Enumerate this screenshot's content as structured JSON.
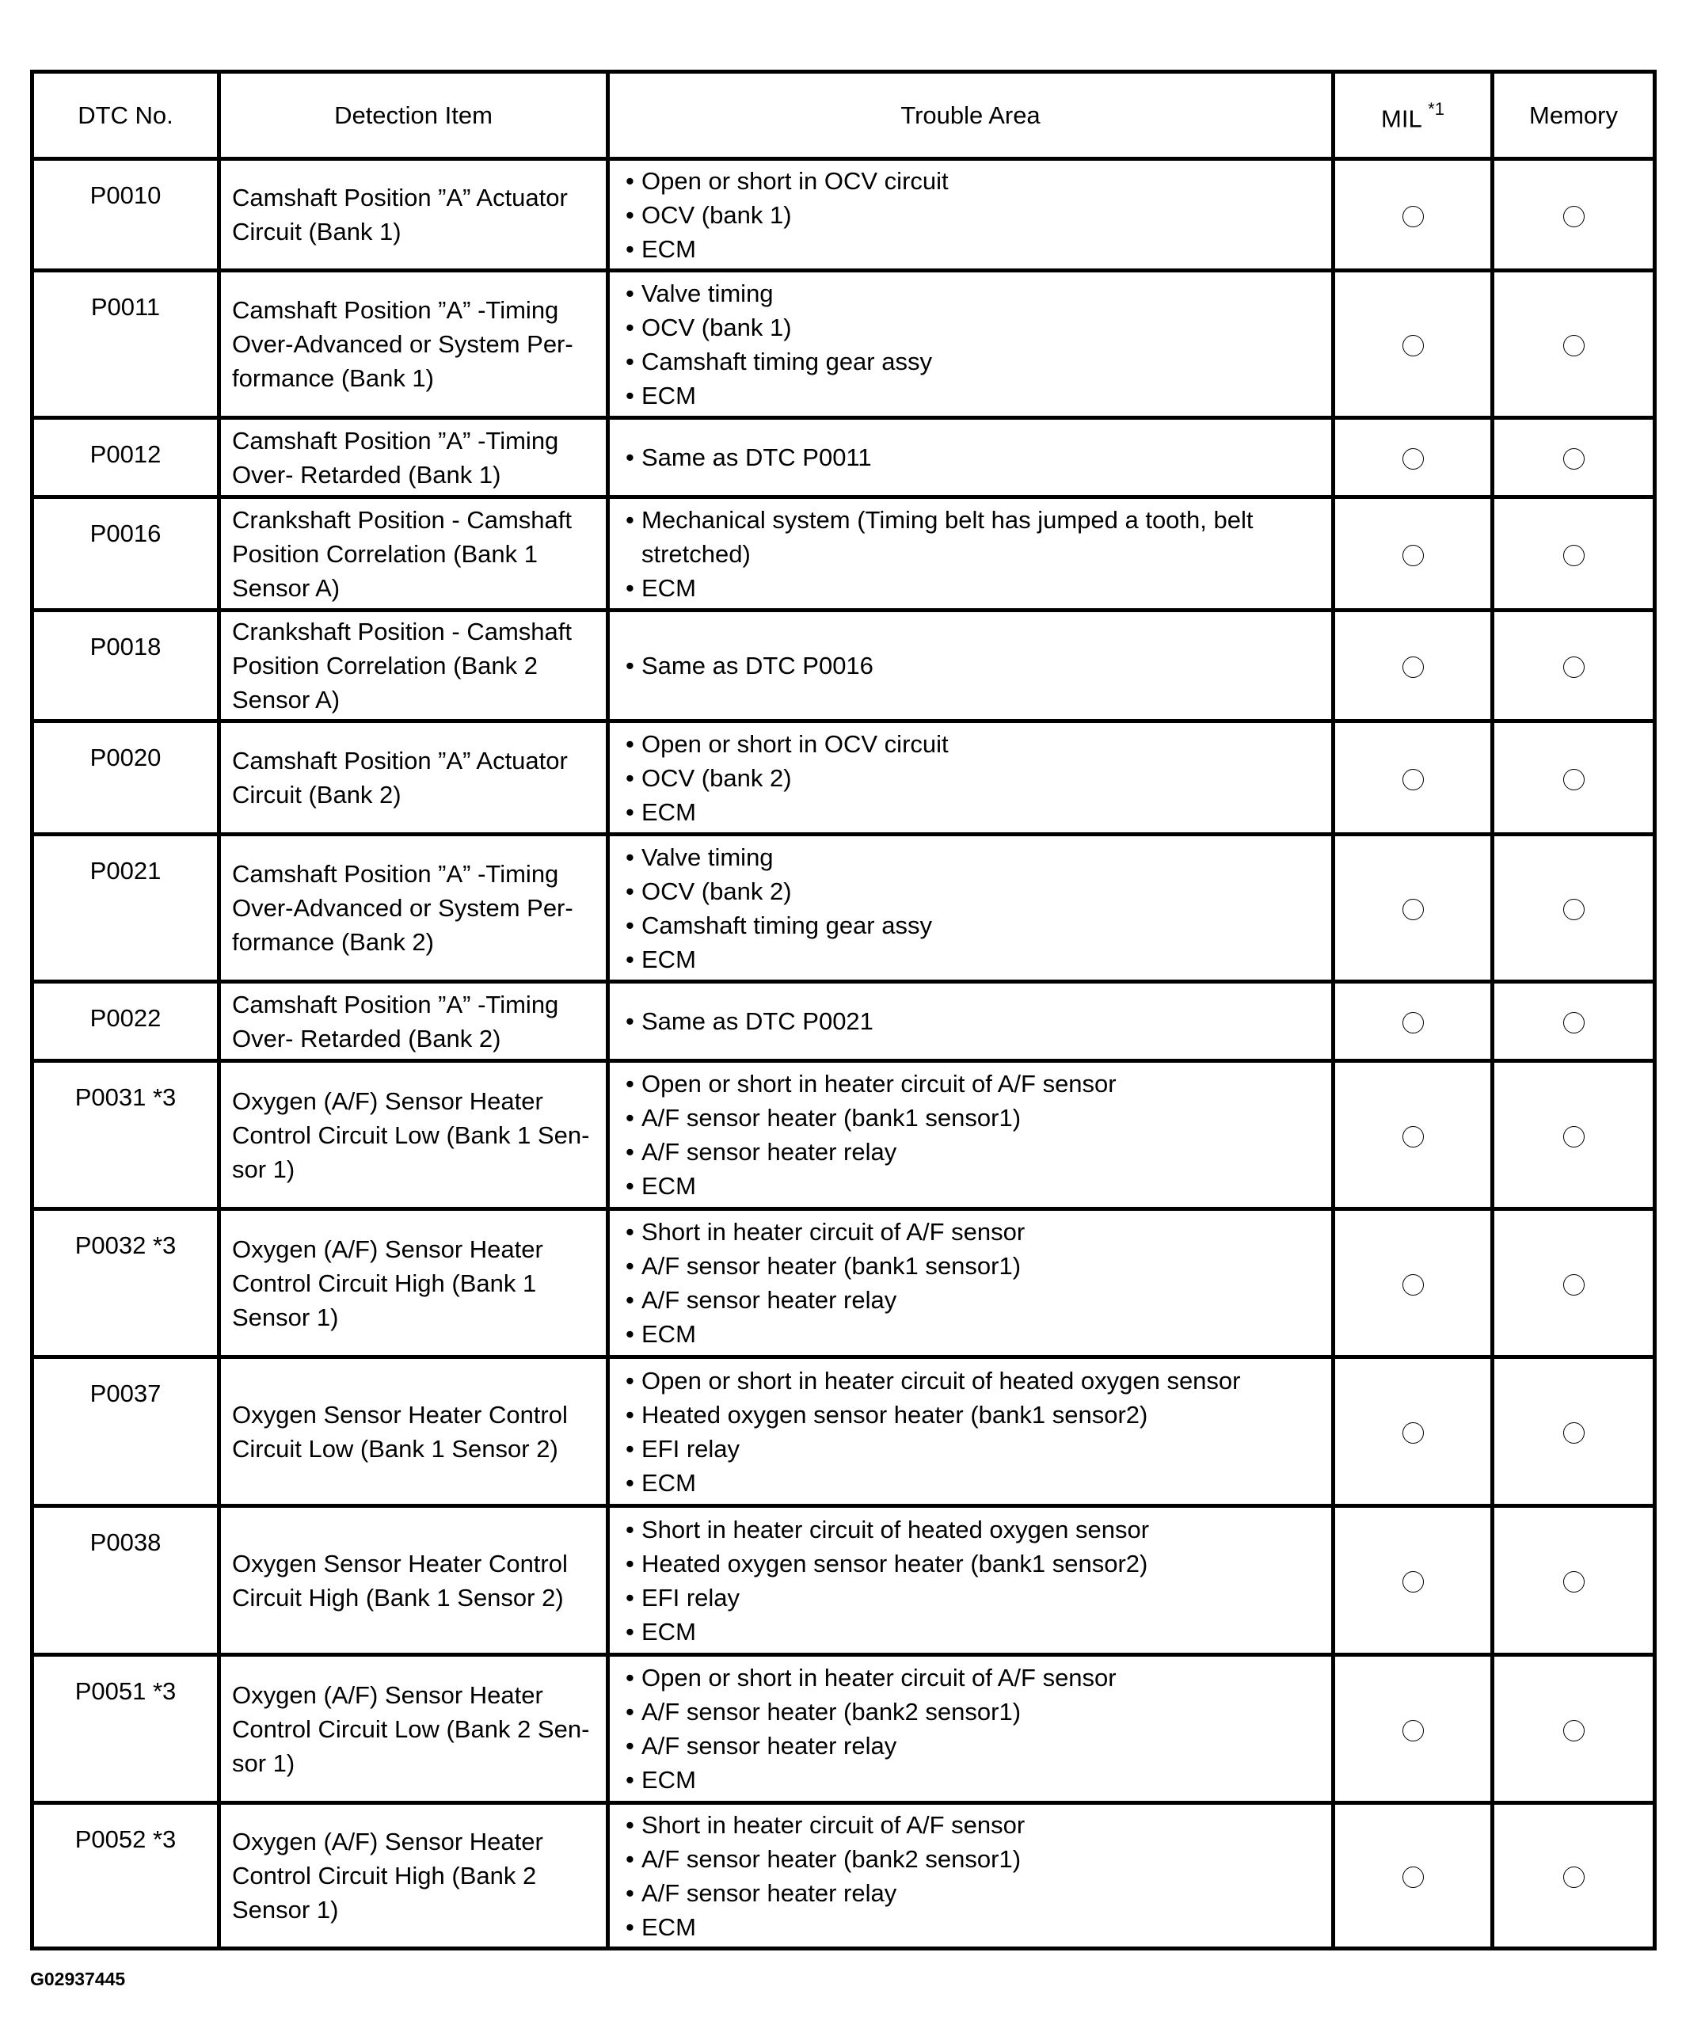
{
  "headers": {
    "dtc": "DTC No.",
    "detection": "Detection Item",
    "trouble": "Trouble Area",
    "mil": "MIL",
    "mil_note": "*1",
    "memory": "Memory"
  },
  "rows": [
    {
      "dtc": "P0010",
      "detection": "Camshaft Position ”A” Actuator Circuit (Bank 1)",
      "trouble": [
        "Open or short in OCV circuit",
        "OCV (bank 1)",
        "ECM"
      ],
      "mil": true,
      "memory": true
    },
    {
      "dtc": "P0011",
      "detection": "Camshaft Position ”A” -Timing Over-Advanced or System Per-formance (Bank 1)",
      "trouble": [
        "Valve timing",
        "OCV (bank 1)",
        "Camshaft timing gear assy",
        "ECM"
      ],
      "mil": true,
      "memory": true
    },
    {
      "dtc": "P0012",
      "detection": "Camshaft Position ”A” -Timing Over- Retarded (Bank 1)",
      "trouble": [
        "Same as DTC P0011"
      ],
      "mil": true,
      "memory": true
    },
    {
      "dtc": "P0016",
      "detection": "Crankshaft Position - Camshaft Position Correlation (Bank 1 Sensor A)",
      "trouble": [
        "Mechanical system (Timing belt has jumped a tooth, belt stretched)",
        "ECM"
      ],
      "mil": true,
      "memory": true
    },
    {
      "dtc": "P0018",
      "detection": "Crankshaft Position - Camshaft Position Correlation (Bank 2 Sensor A)",
      "trouble": [
        "Same as DTC P0016"
      ],
      "mil": true,
      "memory": true
    },
    {
      "dtc": "P0020",
      "detection": "Camshaft Position ”A” Actuator Circuit (Bank 2)",
      "trouble": [
        "Open or short in OCV circuit",
        "OCV (bank 2)",
        "ECM"
      ],
      "mil": true,
      "memory": true
    },
    {
      "dtc": "P0021",
      "detection": "Camshaft Position ”A” -Timing Over-Advanced or System Per-formance (Bank 2)",
      "trouble": [
        "Valve timing",
        "OCV (bank 2)",
        "Camshaft timing gear assy",
        "ECM"
      ],
      "mil": true,
      "memory": true
    },
    {
      "dtc": "P0022",
      "detection": "Camshaft Position ”A” -Timing Over- Retarded (Bank 2)",
      "trouble": [
        "Same as DTC P0021"
      ],
      "mil": true,
      "memory": true
    },
    {
      "dtc": "P0031 *3",
      "detection": "Oxygen (A/F) Sensor Heater Control Circuit Low (Bank 1 Sen-sor 1)",
      "trouble": [
        "Open or short in heater circuit of A/F sensor",
        "A/F sensor heater (bank1 sensor1)",
        "A/F sensor heater relay",
        "ECM"
      ],
      "mil": true,
      "memory": true
    },
    {
      "dtc": "P0032 *3",
      "detection": "Oxygen (A/F) Sensor Heater Control Circuit High (Bank 1 Sensor 1)",
      "trouble": [
        "Short in heater circuit of A/F sensor",
        "A/F sensor heater (bank1 sensor1)",
        "A/F sensor heater relay",
        "ECM"
      ],
      "mil": true,
      "memory": true
    },
    {
      "dtc": "P0037",
      "detection": "Oxygen Sensor Heater Control Circuit Low (Bank 1 Sensor 2)",
      "trouble": [
        "Open or short in heater circuit of heated oxygen sensor",
        "Heated oxygen sensor heater (bank1 sensor2)",
        "EFI relay",
        "ECM"
      ],
      "mil": true,
      "memory": true
    },
    {
      "dtc": "P0038",
      "detection": "Oxygen Sensor Heater Control Circuit High (Bank 1 Sensor 2)",
      "trouble": [
        "Short in heater circuit of heated oxygen sensor",
        "Heated oxygen sensor heater (bank1 sensor2)",
        "EFI relay",
        "ECM"
      ],
      "mil": true,
      "memory": true
    },
    {
      "dtc": "P0051 *3",
      "detection": "Oxygen (A/F) Sensor Heater Control Circuit Low (Bank 2 Sen-sor 1)",
      "trouble": [
        "Open or short in heater circuit of A/F sensor",
        "A/F sensor heater (bank2 sensor1)",
        "A/F sensor heater relay",
        "ECM"
      ],
      "mil": true,
      "memory": true
    },
    {
      "dtc": "P0052 *3",
      "detection": "Oxygen (A/F) Sensor Heater Control Circuit High (Bank 2 Sensor 1)",
      "trouble": [
        "Short in heater circuit of A/F sensor",
        "A/F sensor heater (bank2 sensor1)",
        "A/F sensor heater relay",
        "ECM"
      ],
      "mil": true,
      "memory": true
    }
  ],
  "figure_id": "G02937445"
}
